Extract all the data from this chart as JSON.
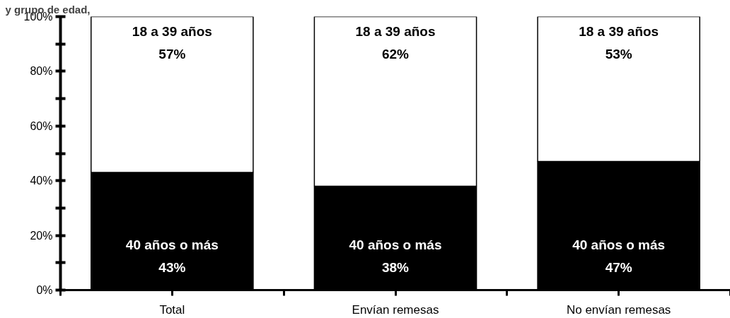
{
  "chart_data": {
    "type": "bar",
    "title": "y grupo de edad,",
    "categories": [
      "Total",
      "Envían remesas",
      "No envían remesas"
    ],
    "stacked": true,
    "series": [
      {
        "name": "40 años o más",
        "color": "#000000",
        "values": [
          43,
          38,
          47
        ],
        "value_labels": [
          "43%",
          "38%",
          "47%"
        ]
      },
      {
        "name": "18 a 39 años",
        "color": "#ffffff",
        "values": [
          57,
          62,
          53
        ],
        "value_labels": [
          "57%",
          "62%",
          "53%"
        ]
      }
    ],
    "ylim": [
      0,
      100
    ],
    "yticks": [
      {
        "value": 0,
        "label": "0%"
      },
      {
        "value": 10,
        "label": null
      },
      {
        "value": 20,
        "label": "20%"
      },
      {
        "value": 30,
        "label": null
      },
      {
        "value": 40,
        "label": "40%"
      },
      {
        "value": 50,
        "label": null
      },
      {
        "value": 60,
        "label": "60%"
      },
      {
        "value": 70,
        "label": null
      },
      {
        "value": 80,
        "label": "80%"
      },
      {
        "value": 90,
        "label": null
      },
      {
        "value": 100,
        "label": "100%"
      }
    ],
    "grid": false,
    "legend": false
  }
}
